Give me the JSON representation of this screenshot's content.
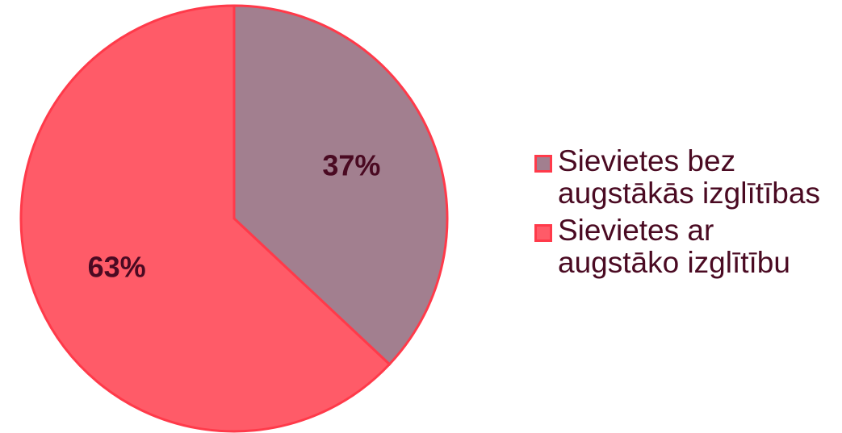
{
  "chart_data": {
    "type": "pie",
    "categories": [
      "Sievietes bez augstākās izglītības",
      "Sievietes ar augstāko izglītību"
    ],
    "values": [
      37,
      63
    ],
    "value_labels": [
      "37%",
      "63%"
    ],
    "colors": [
      "#a27f8f",
      "#ff5b68"
    ],
    "legend": "right"
  }
}
